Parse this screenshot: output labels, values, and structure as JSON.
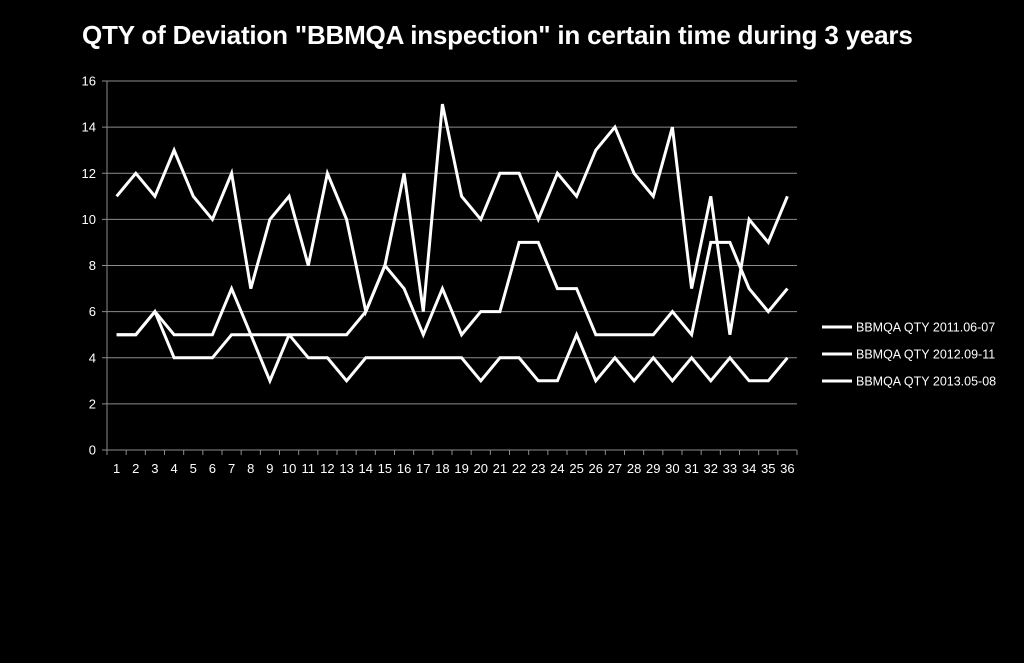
{
  "chart_data": {
    "type": "line",
    "title": "QTY of Deviation \"BBMQA inspection\" in certain time during 3 years",
    "xlabel": "",
    "ylabel": "",
    "x": [
      1,
      2,
      3,
      4,
      5,
      6,
      7,
      8,
      9,
      10,
      11,
      12,
      13,
      14,
      15,
      16,
      17,
      18,
      19,
      20,
      21,
      22,
      23,
      24,
      25,
      26,
      27,
      28,
      29,
      30,
      31,
      32,
      33,
      34,
      35,
      36
    ],
    "ylim": [
      0,
      16
    ],
    "yticks": [
      0,
      2,
      4,
      6,
      8,
      10,
      12,
      14,
      16
    ],
    "grid": true,
    "legend_position": "right",
    "series": [
      {
        "name": "BBMQA QTY 2011.06-07",
        "color": "#ffffff",
        "values": [
          11,
          12,
          11,
          13,
          11,
          10,
          12,
          7,
          10,
          11,
          8,
          12,
          10,
          6,
          8,
          12,
          6,
          15,
          11,
          10,
          12,
          12,
          10,
          12,
          11,
          13,
          14,
          12,
          11,
          14,
          7,
          11,
          5,
          10,
          9,
          11
        ]
      },
      {
        "name": "BBMQA QTY 2012.09-11",
        "color": "#ffffff",
        "values": [
          5,
          5,
          6,
          5,
          5,
          5,
          7,
          5,
          3,
          5,
          5,
          5,
          5,
          6,
          8,
          7,
          5,
          7,
          5,
          6,
          6,
          9,
          9,
          7,
          7,
          5,
          5,
          5,
          5,
          6,
          5,
          9,
          9,
          7,
          6,
          7
        ]
      },
      {
        "name": "BBMQA QTY 2013.05-08",
        "color": "#ffffff",
        "values": [
          5,
          5,
          6,
          4,
          4,
          4,
          5,
          5,
          5,
          5,
          4,
          4,
          3,
          4,
          4,
          4,
          4,
          4,
          4,
          3,
          4,
          4,
          3,
          3,
          5,
          3,
          4,
          3,
          4,
          3,
          4,
          3,
          4,
          3,
          3,
          4
        ]
      }
    ]
  }
}
